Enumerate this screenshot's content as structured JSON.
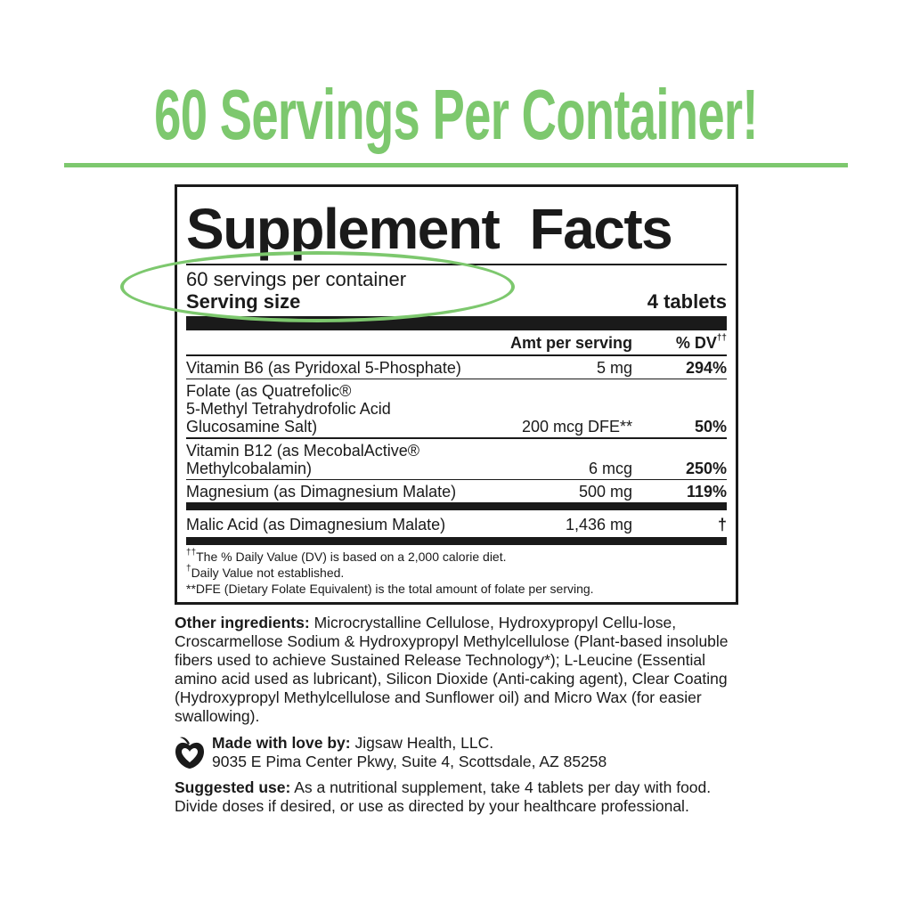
{
  "headline": "60 Servings Per Container!",
  "accent_color": "#7dc86e",
  "facts": {
    "title": "Supplement Facts",
    "servings_per_container": "60 servings per container",
    "serving_size_label": "Serving size",
    "serving_size_value": "4 tablets",
    "header_amount": "Amt per serving",
    "header_dv": "% DV",
    "header_dv_mark": "††",
    "rows": [
      {
        "name": "Vitamin B6 (as Pyridoxal 5-Phosphate)",
        "amount": "5 mg",
        "dv": "294%"
      },
      {
        "name": "Folate (as Quatrefolic® 5-Methyl Tetrahydrofolic Acid Glucosamine Salt)",
        "name_lines": [
          "Folate (as Quatrefolic®",
          "5-Methyl Tetrahydrofolic Acid",
          "Glucosamine Salt)"
        ],
        "amount": "200 mcg DFE**",
        "dv": "50%"
      },
      {
        "name": "Vitamin B12 (as MecobalActive® Methylcobalamin)",
        "name_lines": [
          "Vitamin B12 (as MecobalActive®",
          "Methylcobalamin)"
        ],
        "amount": "6 mcg",
        "dv": "250%"
      },
      {
        "name": "Magnesium (as Dimagnesium Malate)",
        "amount": "500 mg",
        "dv": "119%"
      },
      {
        "name": "Malic Acid (as Dimagnesium Malate)",
        "amount": "1,436 mg",
        "dv": "†"
      }
    ],
    "footnotes": [
      {
        "mark": "††",
        "text": "The % Daily Value (DV) is based on a 2,000 calorie diet."
      },
      {
        "mark": "†",
        "text": "Daily Value not established."
      },
      {
        "mark": "",
        "text": "**DFE (Dietary Folate Equivalent) is the total amount of folate per serving."
      }
    ]
  },
  "other_ingredients": {
    "label": "Other ingredients:",
    "text": "Microcrystalline Cellulose, Hydroxypropyl Cellu-lose, Croscarmellose Sodium & Hydroxypropyl Methylcellulose (Plant-based insoluble fibers used to achieve Sustained Release Technology*); L-Leucine (Essential amino acid used as lubricant), Silicon Dioxide (Anti-caking agent), Clear Coating (Hydroxypropyl Methylcellulose and Sunflower oil) and Micro Wax (for easier swallowing)."
  },
  "made_by": {
    "icon": "apple-heart-icon",
    "label": "Made with love by:",
    "company": "Jigsaw Health, LLC.",
    "address": "9035 E Pima Center Pkwy, Suite 4, Scottsdale, AZ 85258"
  },
  "suggested_use": {
    "label": "Suggested use:",
    "text": "As a nutritional supplement, take 4 tablets per day with food. Divide doses if desired, or use as directed by your healthcare professional."
  }
}
